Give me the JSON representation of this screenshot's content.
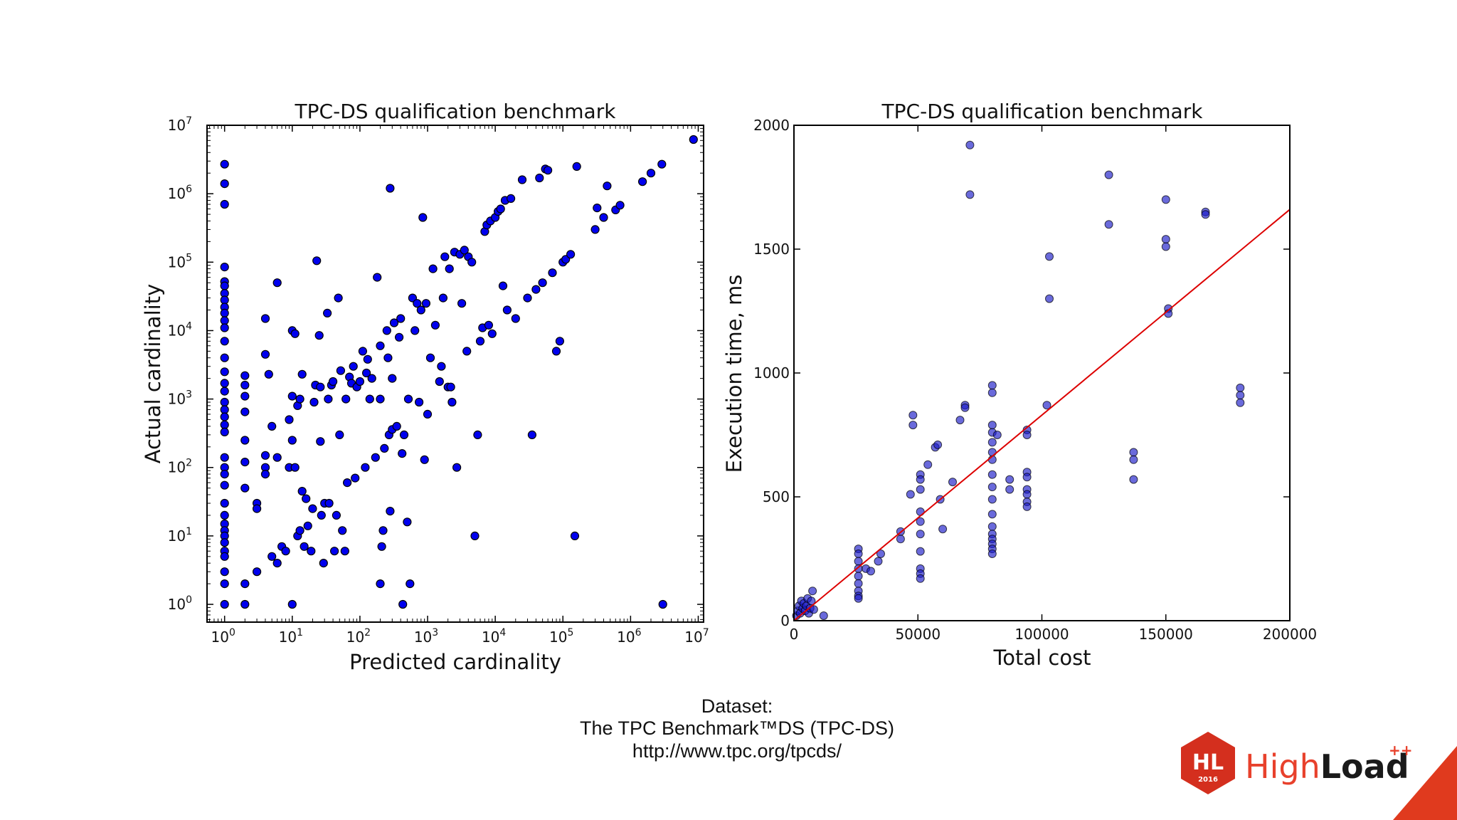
{
  "chart_data": [
    {
      "type": "scatter",
      "title": "TPC-DS qualification benchmark",
      "xlabel": "Predicted cardinality",
      "ylabel": "Actual cardinality",
      "xscale": "log",
      "yscale": "log",
      "xlim": [
        0.55,
        12000000
      ],
      "ylim": [
        0.55,
        10000000
      ],
      "xticks": [
        {
          "base": "10",
          "exp": "0"
        },
        {
          "base": "10",
          "exp": "1"
        },
        {
          "base": "10",
          "exp": "2"
        },
        {
          "base": "10",
          "exp": "3"
        },
        {
          "base": "10",
          "exp": "4"
        },
        {
          "base": "10",
          "exp": "5"
        },
        {
          "base": "10",
          "exp": "6"
        },
        {
          "base": "10",
          "exp": "7"
        }
      ],
      "yticks": [
        {
          "base": "10",
          "exp": "0"
        },
        {
          "base": "10",
          "exp": "1"
        },
        {
          "base": "10",
          "exp": "2"
        },
        {
          "base": "10",
          "exp": "3"
        },
        {
          "base": "10",
          "exp": "4"
        },
        {
          "base": "10",
          "exp": "5"
        },
        {
          "base": "10",
          "exp": "6"
        },
        {
          "base": "10",
          "exp": "7"
        }
      ],
      "grid": false,
      "marker_color": "#0000ee",
      "points": [
        [
          1,
          2700000
        ],
        [
          1,
          1400000
        ],
        [
          1,
          700000
        ],
        [
          1,
          85000
        ],
        [
          1,
          52000
        ],
        [
          1,
          45000
        ],
        [
          1,
          35000
        ],
        [
          1,
          28000
        ],
        [
          1,
          22000
        ],
        [
          1,
          18000
        ],
        [
          1,
          14000
        ],
        [
          1,
          11000
        ],
        [
          1,
          7000
        ],
        [
          1,
          4000
        ],
        [
          1,
          2500
        ],
        [
          1,
          1700
        ],
        [
          1,
          1300
        ],
        [
          1,
          900
        ],
        [
          1,
          700
        ],
        [
          1,
          550
        ],
        [
          1,
          420
        ],
        [
          1,
          330
        ],
        [
          1,
          140
        ],
        [
          1,
          100
        ],
        [
          1,
          80
        ],
        [
          1,
          55
        ],
        [
          1,
          30
        ],
        [
          1,
          20
        ],
        [
          1,
          15
        ],
        [
          1,
          12
        ],
        [
          1,
          10
        ],
        [
          1,
          8
        ],
        [
          1,
          6
        ],
        [
          1,
          5
        ],
        [
          1,
          3
        ],
        [
          1,
          2
        ],
        [
          1,
          1
        ],
        [
          2,
          2200
        ],
        [
          2,
          1600
        ],
        [
          2,
          1100
        ],
        [
          2,
          650
        ],
        [
          2,
          250
        ],
        [
          2,
          120
        ],
        [
          2,
          50
        ],
        [
          2,
          2
        ],
        [
          2,
          1
        ],
        [
          3,
          30
        ],
        [
          3,
          25
        ],
        [
          3,
          3
        ],
        [
          4,
          15000
        ],
        [
          4,
          4500
        ],
        [
          4,
          150
        ],
        [
          4,
          100
        ],
        [
          4,
          80
        ],
        [
          4.5,
          2300
        ],
        [
          5,
          400
        ],
        [
          5,
          5
        ],
        [
          6,
          50000
        ],
        [
          6,
          140
        ],
        [
          6,
          4
        ],
        [
          7,
          7
        ],
        [
          8,
          6
        ],
        [
          9,
          100
        ],
        [
          9,
          500
        ],
        [
          10,
          10000
        ],
        [
          10,
          1100
        ],
        [
          10,
          250
        ],
        [
          10,
          1
        ],
        [
          11,
          9000
        ],
        [
          11,
          100
        ],
        [
          12,
          800
        ],
        [
          12,
          10
        ],
        [
          13,
          1000
        ],
        [
          13,
          12
        ],
        [
          14,
          2300
        ],
        [
          14,
          45
        ],
        [
          15,
          7
        ],
        [
          16,
          35
        ],
        [
          17,
          14
        ],
        [
          19,
          6
        ],
        [
          20,
          25
        ],
        [
          21,
          900
        ],
        [
          22,
          1600
        ],
        [
          23,
          105000
        ],
        [
          25,
          8500
        ],
        [
          26,
          1500
        ],
        [
          26,
          240
        ],
        [
          27,
          20
        ],
        [
          29,
          4
        ],
        [
          30,
          30
        ],
        [
          33,
          18000
        ],
        [
          34,
          1000
        ],
        [
          35,
          30
        ],
        [
          38,
          1600
        ],
        [
          40,
          1800
        ],
        [
          42,
          6
        ],
        [
          45,
          20
        ],
        [
          48,
          30000
        ],
        [
          50,
          300
        ],
        [
          52,
          2600
        ],
        [
          55,
          12
        ],
        [
          60,
          6
        ],
        [
          62,
          1000
        ],
        [
          65,
          60
        ],
        [
          70,
          2100
        ],
        [
          75,
          1700
        ],
        [
          80,
          3000
        ],
        [
          85,
          70
        ],
        [
          90,
          1500
        ],
        [
          100,
          1800
        ],
        [
          110,
          5000
        ],
        [
          120,
          100
        ],
        [
          125,
          2400
        ],
        [
          130,
          3800
        ],
        [
          140,
          1000
        ],
        [
          150,
          2000
        ],
        [
          170,
          140
        ],
        [
          180,
          60000
        ],
        [
          200,
          6000
        ],
        [
          200,
          2
        ],
        [
          200,
          1000
        ],
        [
          210,
          7
        ],
        [
          220,
          12
        ],
        [
          230,
          190
        ],
        [
          250,
          10000
        ],
        [
          260,
          4000
        ],
        [
          270,
          300
        ],
        [
          280,
          1200000
        ],
        [
          280,
          23
        ],
        [
          300,
          2000
        ],
        [
          300,
          360
        ],
        [
          320,
          13000
        ],
        [
          350,
          400
        ],
        [
          380,
          8000
        ],
        [
          400,
          15000
        ],
        [
          420,
          160
        ],
        [
          430,
          1
        ],
        [
          450,
          300
        ],
        [
          500,
          16
        ],
        [
          520,
          1000
        ],
        [
          550,
          2
        ],
        [
          600,
          30000
        ],
        [
          650,
          10000
        ],
        [
          700,
          25000
        ],
        [
          750,
          900
        ],
        [
          800,
          20000
        ],
        [
          850,
          450000
        ],
        [
          900,
          130
        ],
        [
          950,
          25000
        ],
        [
          1000,
          600
        ],
        [
          1100,
          4000
        ],
        [
          1200,
          80000
        ],
        [
          1300,
          12000
        ],
        [
          1500,
          1800
        ],
        [
          1600,
          3000
        ],
        [
          1700,
          30000
        ],
        [
          1800,
          120000
        ],
        [
          2000,
          1500
        ],
        [
          2100,
          80000
        ],
        [
          2200,
          1500
        ],
        [
          2300,
          900
        ],
        [
          2500,
          140000
        ],
        [
          2700,
          100
        ],
        [
          3000,
          130000
        ],
        [
          3200,
          25000
        ],
        [
          3500,
          150000
        ],
        [
          3800,
          5000
        ],
        [
          4000,
          120000
        ],
        [
          4500,
          100000
        ],
        [
          5000,
          10
        ],
        [
          5500,
          300
        ],
        [
          6000,
          7000
        ],
        [
          6500,
          11000
        ],
        [
          7000,
          280000
        ],
        [
          7500,
          350000
        ],
        [
          8000,
          12000
        ],
        [
          8500,
          400000
        ],
        [
          9000,
          9000
        ],
        [
          10000,
          450000
        ],
        [
          11000,
          550000
        ],
        [
          12000,
          600000
        ],
        [
          13000,
          45000
        ],
        [
          14000,
          800000
        ],
        [
          15000,
          20000
        ],
        [
          17000,
          850000
        ],
        [
          20000,
          15000
        ],
        [
          25000,
          1600000
        ],
        [
          30000,
          30000
        ],
        [
          35000,
          300
        ],
        [
          40000,
          40000
        ],
        [
          45000,
          1700000
        ],
        [
          50000,
          50000
        ],
        [
          55000,
          2300000
        ],
        [
          60000,
          2200000
        ],
        [
          70000,
          70000
        ],
        [
          80000,
          5000
        ],
        [
          90000,
          7000
        ],
        [
          100000,
          100000
        ],
        [
          110000,
          110000
        ],
        [
          130000,
          130000
        ],
        [
          150000,
          10
        ],
        [
          160000,
          2500000
        ],
        [
          300000,
          300000
        ],
        [
          320000,
          620000
        ],
        [
          400000,
          450000
        ],
        [
          450000,
          1300000
        ],
        [
          600000,
          580000
        ],
        [
          700000,
          680000
        ],
        [
          1500000,
          1500000
        ],
        [
          2000000,
          2000000
        ],
        [
          2900000,
          2700000
        ],
        [
          3000000,
          1
        ],
        [
          8500000,
          6200000
        ]
      ]
    },
    {
      "type": "scatter",
      "title": "TPC-DS qualification benchmark",
      "xlabel": "Total cost",
      "ylabel": "Execution time, ms",
      "xlim": [
        0,
        200000
      ],
      "ylim": [
        0,
        2000
      ],
      "xticks": [
        "0",
        "50000",
        "100000",
        "150000",
        "200000"
      ],
      "yticks": [
        "0",
        "500",
        "1000",
        "1500",
        "2000"
      ],
      "grid": false,
      "marker_color": "#1a1ac8",
      "trend_line": {
        "color": "#dd0000",
        "from": [
          0,
          0
        ],
        "to": [
          200000,
          1660
        ]
      },
      "points": [
        [
          1000,
          20
        ],
        [
          1500,
          40
        ],
        [
          2000,
          60
        ],
        [
          2500,
          30
        ],
        [
          3000,
          80
        ],
        [
          3500,
          50
        ],
        [
          4000,
          70
        ],
        [
          4500,
          40
        ],
        [
          5000,
          60
        ],
        [
          5500,
          90
        ],
        [
          6000,
          30
        ],
        [
          6500,
          50
        ],
        [
          7000,
          80
        ],
        [
          7500,
          120
        ],
        [
          8000,
          45
        ],
        [
          12000,
          20
        ],
        [
          26000,
          290
        ],
        [
          26000,
          270
        ],
        [
          26000,
          240
        ],
        [
          26000,
          210
        ],
        [
          26000,
          180
        ],
        [
          26000,
          150
        ],
        [
          26000,
          120
        ],
        [
          26000,
          100
        ],
        [
          26000,
          90
        ],
        [
          29000,
          210
        ],
        [
          31000,
          200
        ],
        [
          34000,
          240
        ],
        [
          35000,
          270
        ],
        [
          43000,
          360
        ],
        [
          43000,
          330
        ],
        [
          47000,
          510
        ],
        [
          48000,
          830
        ],
        [
          48000,
          790
        ],
        [
          51000,
          590
        ],
        [
          51000,
          570
        ],
        [
          51000,
          530
        ],
        [
          51000,
          440
        ],
        [
          51000,
          400
        ],
        [
          51000,
          350
        ],
        [
          51000,
          280
        ],
        [
          51000,
          210
        ],
        [
          51000,
          190
        ],
        [
          51000,
          170
        ],
        [
          54000,
          630
        ],
        [
          57000,
          700
        ],
        [
          58000,
          710
        ],
        [
          59000,
          490
        ],
        [
          60000,
          370
        ],
        [
          64000,
          560
        ],
        [
          67000,
          810
        ],
        [
          69000,
          870
        ],
        [
          69000,
          860
        ],
        [
          71000,
          1920
        ],
        [
          71000,
          1720
        ],
        [
          80000,
          950
        ],
        [
          80000,
          920
        ],
        [
          80000,
          790
        ],
        [
          80000,
          760
        ],
        [
          80000,
          720
        ],
        [
          80000,
          680
        ],
        [
          80000,
          650
        ],
        [
          80000,
          590
        ],
        [
          80000,
          540
        ],
        [
          80000,
          490
        ],
        [
          80000,
          430
        ],
        [
          80000,
          380
        ],
        [
          80000,
          350
        ],
        [
          80000,
          330
        ],
        [
          80000,
          310
        ],
        [
          80000,
          290
        ],
        [
          80000,
          270
        ],
        [
          82000,
          750
        ],
        [
          87000,
          570
        ],
        [
          87000,
          530
        ],
        [
          94000,
          600
        ],
        [
          94000,
          580
        ],
        [
          94000,
          530
        ],
        [
          94000,
          510
        ],
        [
          94000,
          480
        ],
        [
          94000,
          460
        ],
        [
          94000,
          770
        ],
        [
          94000,
          750
        ],
        [
          102000,
          870
        ],
        [
          103000,
          1470
        ],
        [
          103000,
          1300
        ],
        [
          127000,
          1800
        ],
        [
          127000,
          1600
        ],
        [
          137000,
          680
        ],
        [
          137000,
          650
        ],
        [
          137000,
          570
        ],
        [
          150000,
          1700
        ],
        [
          150000,
          1540
        ],
        [
          150000,
          1510
        ],
        [
          151000,
          1260
        ],
        [
          151000,
          1240
        ],
        [
          166000,
          1650
        ],
        [
          166000,
          1640
        ],
        [
          180000,
          940
        ],
        [
          180000,
          910
        ],
        [
          180000,
          880
        ]
      ]
    }
  ],
  "caption": {
    "line1": "Dataset:",
    "line2": "The TPC Benchmark™DS (TPC-DS)",
    "line3": "http://www.tpc.org/tpcds/"
  },
  "logo": {
    "badge_text": "HL",
    "badge_year": "2016",
    "word_light": "High",
    "word_bold": "Load",
    "superscript": "++",
    "colors": {
      "hex": "#d42f1e",
      "corner": "#e03a1e",
      "word": "#e8412c",
      "bold": "#1a1a1a"
    }
  }
}
